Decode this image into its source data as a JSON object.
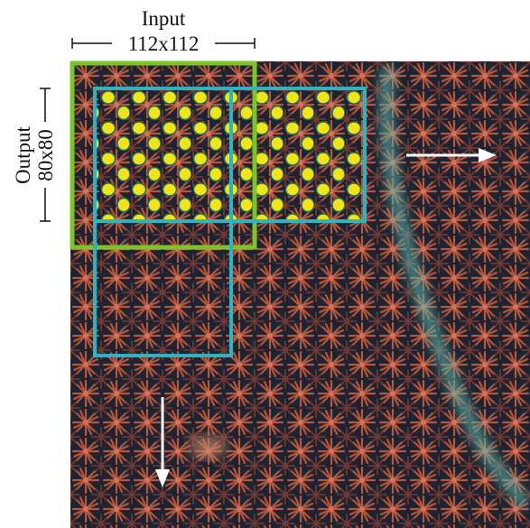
{
  "input_label": {
    "title": "Input",
    "size": "112x112"
  },
  "output_label": {
    "title": "Output",
    "size": "80x80"
  }
}
